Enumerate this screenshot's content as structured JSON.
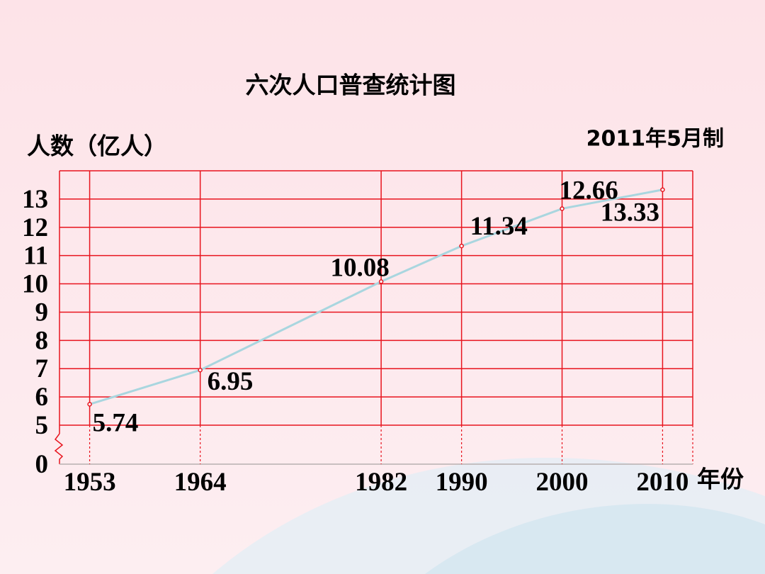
{
  "chart_data": {
    "type": "line",
    "title": "六次人口普查统计图",
    "y_label": "人数（亿人）",
    "x_label": "年份",
    "note": "2011年5月制",
    "x": [
      1953,
      1964,
      1982,
      1990,
      2000,
      2010
    ],
    "series": [
      {
        "color": "#a9d6df",
        "values": [
          5.74,
          6.95,
          10.08,
          11.34,
          12.66,
          13.33
        ]
      }
    ],
    "xlim": [
      1950,
      2013
    ],
    "xticks": [
      1953,
      1964,
      1982,
      1990,
      2000,
      2010
    ],
    "ylim": [
      5,
      14
    ],
    "yticks": [
      0,
      5,
      6,
      7,
      8,
      9,
      10,
      11,
      12,
      13
    ],
    "y_break": true,
    "grid": true,
    "grid_color": "#e8141e",
    "marker_color": "#e8141e"
  }
}
